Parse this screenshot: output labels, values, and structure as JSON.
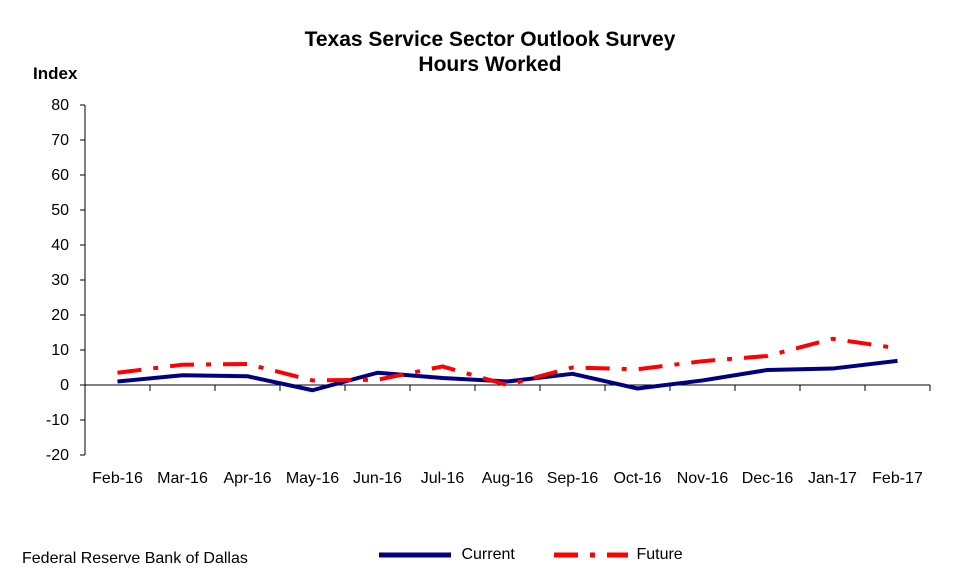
{
  "chart_data": {
    "type": "line",
    "title": "Texas Service Sector Outlook Survey",
    "subtitle": "Hours Worked",
    "ylabel": "Index",
    "xlabel": "",
    "ylim": [
      -20,
      80
    ],
    "yticks": [
      -20,
      -10,
      0,
      10,
      20,
      30,
      40,
      50,
      60,
      70,
      80
    ],
    "categories": [
      "Feb-16",
      "Mar-16",
      "Apr-16",
      "May-16",
      "Jun-16",
      "Jul-16",
      "Aug-16",
      "Sep-16",
      "Oct-16",
      "Nov-16",
      "Dec-16",
      "Jan-17",
      "Feb-17"
    ],
    "series": [
      {
        "name": "Current",
        "color": "#000080",
        "style": "solid",
        "values": [
          1.0,
          2.8,
          2.5,
          -1.5,
          3.5,
          2.0,
          1.0,
          3.2,
          -1.0,
          1.3,
          4.3,
          4.7,
          6.9
        ]
      },
      {
        "name": "Future",
        "color": "#ff0000",
        "style": "dash-dot",
        "values": [
          3.5,
          5.8,
          6.0,
          1.3,
          1.5,
          5.3,
          0.0,
          5.0,
          4.5,
          6.8,
          8.3,
          13.2,
          10.5
        ]
      }
    ],
    "grid": false,
    "legend_position": "bottom"
  },
  "source": "Federal Reserve Bank of Dallas"
}
